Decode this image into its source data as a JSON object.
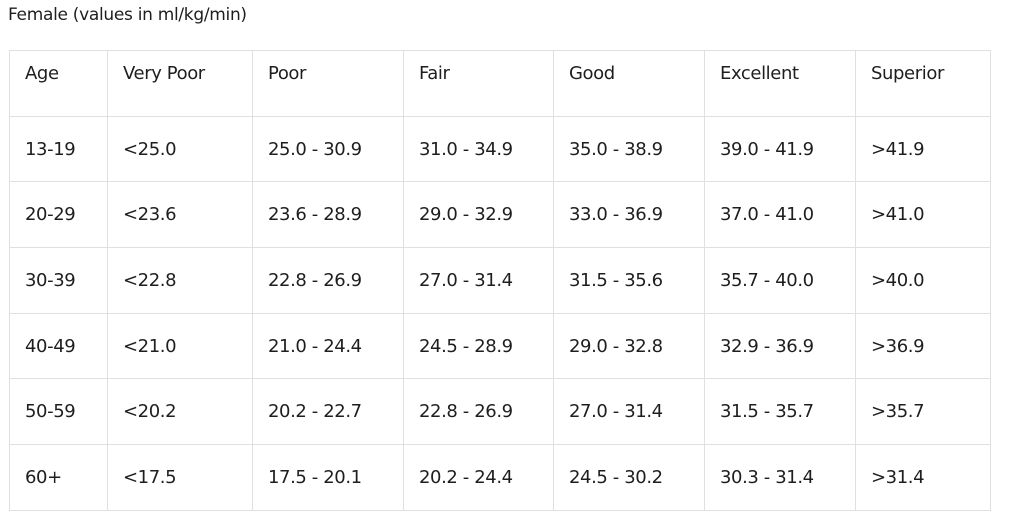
{
  "title": "Female (values in ml/kg/min)",
  "table": {
    "header": [
      "Age",
      "Very Poor",
      "Poor",
      "Fair",
      "Good",
      "Excellent",
      "Superior"
    ],
    "rows": [
      [
        "13-19",
        "<25.0",
        "25.0 - 30.9",
        "31.0 - 34.9",
        "35.0 - 38.9",
        "39.0 - 41.9",
        ">41.9"
      ],
      [
        "20-29",
        "<23.6",
        "23.6 - 28.9",
        "29.0 - 32.9",
        "33.0 - 36.9",
        "37.0 - 41.0",
        ">41.0"
      ],
      [
        "30-39",
        "<22.8",
        "22.8 - 26.9",
        "27.0 - 31.4",
        "31.5 - 35.6",
        "35.7 - 40.0",
        ">40.0"
      ],
      [
        "40-49",
        "<21.0",
        "21.0 - 24.4",
        "24.5 - 28.9",
        "29.0 - 32.8",
        "32.9 - 36.9",
        ">36.9"
      ],
      [
        "50-59",
        "<20.2",
        "20.2 - 22.7",
        "22.8 - 26.9",
        "27.0 - 31.4",
        "31.5 - 35.7",
        ">35.7"
      ],
      [
        "60+",
        "<17.5",
        "17.5 - 20.1",
        "20.2 - 24.4",
        "24.5 - 30.2",
        "30.3 - 31.4",
        ">31.4"
      ]
    ]
  }
}
